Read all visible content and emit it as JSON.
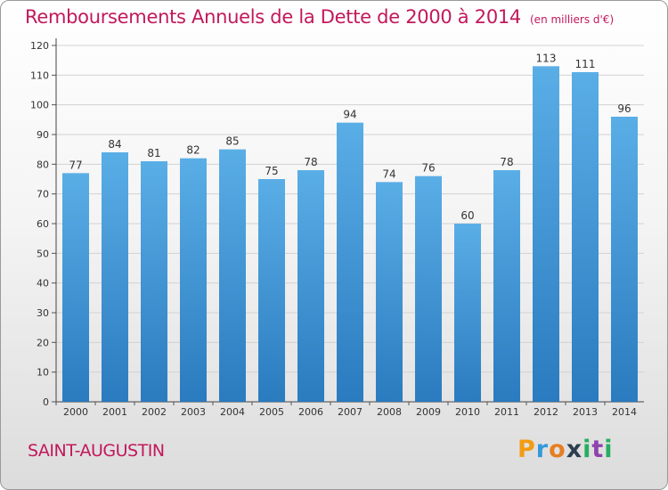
{
  "title": "Remboursements Annuels de la Dette de 2000 à 2014",
  "unit_note": "(en milliers d'€)",
  "commune": "SAINT-AUGUSTIN",
  "logo": "Proxiti",
  "colors": {
    "title": "#c2185b",
    "bar_top": "#5aaee6",
    "bar_bottom": "#2a7bbf",
    "grid": "#cfcfcf"
  },
  "chart_data": {
    "type": "bar",
    "title": "Remboursements Annuels de la Dette de 2000 à 2014",
    "xlabel": "",
    "ylabel": "",
    "categories": [
      "2000",
      "2001",
      "2002",
      "2003",
      "2004",
      "2005",
      "2006",
      "2007",
      "2008",
      "2009",
      "2010",
      "2011",
      "2012",
      "2013",
      "2014"
    ],
    "values": [
      77,
      84,
      81,
      82,
      85,
      75,
      78,
      94,
      74,
      76,
      60,
      78,
      113,
      111,
      96
    ],
    "ylim": [
      0,
      120
    ],
    "yticks": [
      0,
      10,
      20,
      30,
      40,
      50,
      60,
      70,
      80,
      90,
      100,
      110,
      120
    ],
    "grid": true,
    "data_labels": true
  }
}
